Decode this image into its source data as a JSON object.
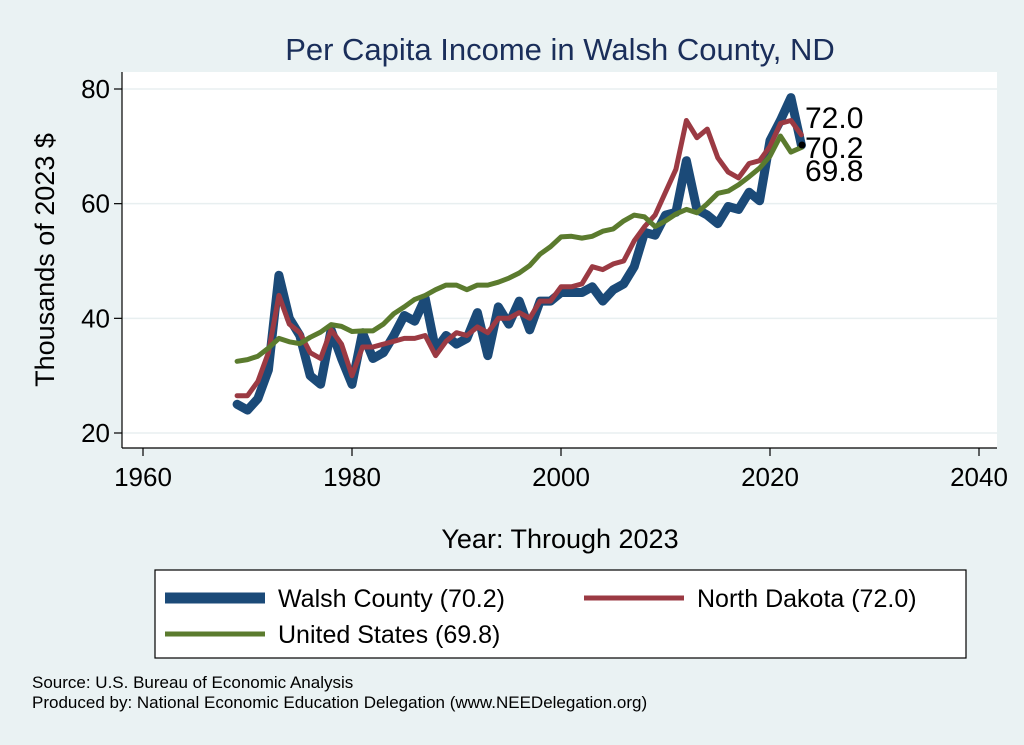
{
  "colors": {
    "background": "#eaf2f3",
    "plot_background": "#ffffff",
    "walsh": "#1b4a78",
    "north_dakota": "#9b3a43",
    "united_states": "#5b7b2e",
    "grid": "#e8eff0"
  },
  "chart_data": {
    "type": "line",
    "title": "Per Capita Income in Walsh County, ND",
    "xlabel": "Year: Through 2023",
    "ylabel": "Thousands of 2023 $",
    "xlim": [
      1960,
      2040
    ],
    "ylim": [
      20,
      80
    ],
    "xticks": [
      1960,
      1980,
      2000,
      2020,
      2040
    ],
    "yticks": [
      20,
      40,
      60,
      80
    ],
    "grid": true,
    "legend_position": "bottom",
    "x": [
      1969,
      1970,
      1971,
      1972,
      1973,
      1974,
      1975,
      1976,
      1977,
      1978,
      1979,
      1980,
      1981,
      1982,
      1983,
      1984,
      1985,
      1986,
      1987,
      1988,
      1989,
      1990,
      1991,
      1992,
      1993,
      1994,
      1995,
      1996,
      1997,
      1998,
      1999,
      2000,
      2001,
      2002,
      2003,
      2004,
      2005,
      2006,
      2007,
      2008,
      2009,
      2010,
      2011,
      2012,
      2013,
      2014,
      2015,
      2016,
      2017,
      2018,
      2019,
      2020,
      2021,
      2022,
      2023
    ],
    "series": [
      {
        "name": "Walsh County (70.2)",
        "color_key": "walsh",
        "values": [
          25.0,
          24.0,
          26.0,
          31.0,
          47.5,
          40.0,
          37.0,
          30.0,
          28.5,
          38.0,
          33.0,
          28.5,
          37.5,
          33.0,
          34.0,
          37.0,
          40.5,
          39.5,
          43.5,
          34.5,
          37.0,
          35.5,
          36.5,
          41.0,
          33.5,
          42.0,
          39.0,
          43.0,
          38.0,
          43.0,
          43.0,
          44.5,
          44.5,
          44.5,
          45.5,
          43.0,
          45.0,
          46.0,
          49.0,
          55.0,
          54.5,
          58.0,
          58.5,
          67.5,
          59.0,
          58.0,
          56.5,
          59.5,
          59.0,
          62.0,
          60.5,
          71.0,
          74.5,
          78.5,
          70.2
        ]
      },
      {
        "name": "North Dakota (72.0)",
        "color_key": "north_dakota",
        "values": [
          26.5,
          26.5,
          29.0,
          34.0,
          44.0,
          39.0,
          37.5,
          34.0,
          33.0,
          38.0,
          35.5,
          30.0,
          35.0,
          35.0,
          35.5,
          36.0,
          36.5,
          36.5,
          37.0,
          33.5,
          36.0,
          37.5,
          37.0,
          38.5,
          37.5,
          40.0,
          40.0,
          41.0,
          40.0,
          43.0,
          43.0,
          45.5,
          45.5,
          46.0,
          49.0,
          48.5,
          49.5,
          50.0,
          53.5,
          56.0,
          58.0,
          62.0,
          66.0,
          74.5,
          71.5,
          73.0,
          68.0,
          65.5,
          64.5,
          67.0,
          67.5,
          70.0,
          74.0,
          74.5,
          72.0
        ]
      },
      {
        "name": "United States (69.8)",
        "color_key": "united_states",
        "values": [
          32.5,
          32.8,
          33.4,
          34.8,
          36.5,
          35.9,
          35.6,
          36.7,
          37.6,
          38.9,
          38.6,
          37.7,
          37.8,
          37.8,
          39.0,
          40.8,
          42.0,
          43.3,
          44.0,
          45.0,
          45.8,
          45.8,
          45.0,
          45.8,
          45.8,
          46.3,
          47.0,
          47.9,
          49.2,
          51.2,
          52.5,
          54.2,
          54.3,
          54.0,
          54.3,
          55.2,
          55.6,
          57.0,
          58.0,
          57.7,
          56.0,
          57.0,
          58.2,
          59.0,
          58.4,
          60.0,
          61.8,
          62.2,
          63.3,
          64.7,
          66.2,
          68.3,
          71.8,
          69.0,
          69.8
        ]
      }
    ],
    "end_labels": [
      "72.0",
      "70.2",
      "69.8"
    ]
  },
  "notes": {
    "source": "Source: U.S. Bureau of Economic Analysis",
    "produced_by": "Produced by: National Economic Education Delegation (www.NEEDelegation.org)"
  }
}
